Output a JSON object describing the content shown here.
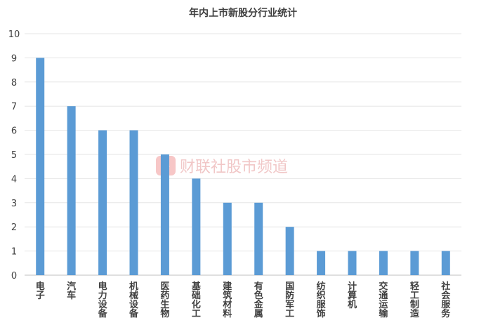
{
  "chart_data": {
    "type": "bar",
    "title": "年内上市新股分行业统计",
    "categories": [
      "电子",
      "汽车",
      "电力设备",
      "机械设备",
      "医药生物",
      "基础化工",
      "建筑材料",
      "有色金属",
      "国防军工",
      "纺织服饰",
      "计算机",
      "交通运输",
      "轻工制造",
      "社会服务"
    ],
    "values": [
      9,
      7,
      6,
      6,
      5,
      4,
      3,
      3,
      2,
      1,
      1,
      1,
      1,
      1
    ],
    "xlabel": "",
    "ylabel": "",
    "ylim": [
      0,
      10
    ],
    "yticks": [
      0,
      1,
      2,
      3,
      4,
      5,
      6,
      7,
      8,
      9,
      10
    ],
    "grid": true,
    "legend": "none",
    "bar_color": "#5b9bd5"
  },
  "watermark": {
    "text": "财联社股市频道",
    "color": "#e8a0a0"
  }
}
